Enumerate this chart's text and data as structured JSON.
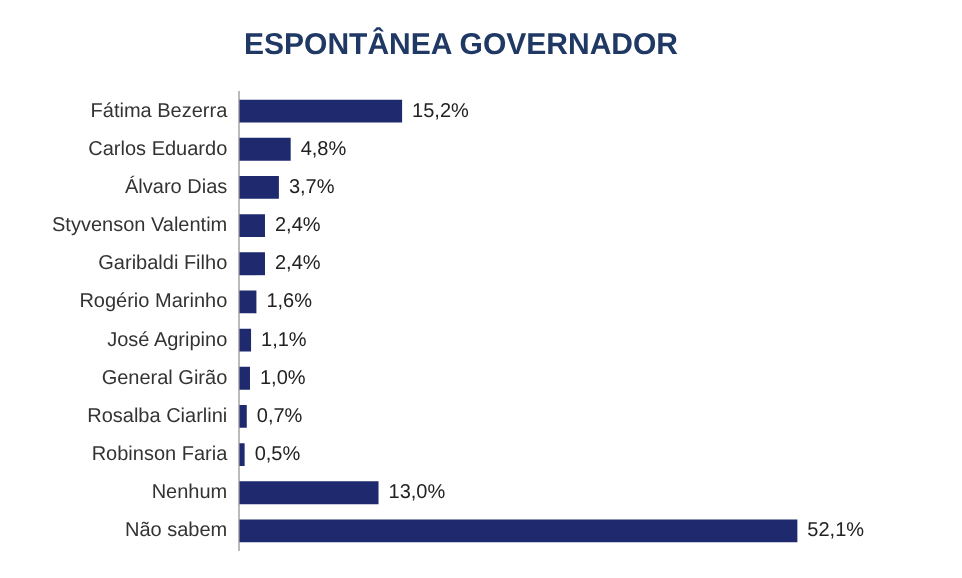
{
  "chart_data": {
    "type": "bar",
    "orientation": "horizontal",
    "title": "ESPONTÂNEA GOVERNADOR",
    "categories": [
      "Fátima Bezerra",
      "Carlos Eduardo",
      "Álvaro Dias",
      "Styvenson Valentim",
      "Garibaldi Filho",
      "Rogério Marinho",
      "José Agripino",
      "General Girão",
      "Rosalba Ciarlini",
      "Robinson Faria",
      "Nenhum",
      "Não sabem"
    ],
    "values": [
      15.2,
      4.8,
      3.7,
      2.4,
      2.4,
      1.6,
      1.1,
      1.0,
      0.7,
      0.5,
      13.0,
      52.1
    ],
    "value_labels": [
      "15,2%",
      "4,8%",
      "3,7%",
      "2,4%",
      "2,4%",
      "1,6%",
      "1,1%",
      "1,0%",
      "0,7%",
      "0,5%",
      "13,0%",
      "52,1%"
    ],
    "color": "#1f2a6e",
    "grid": false,
    "legend": false
  }
}
